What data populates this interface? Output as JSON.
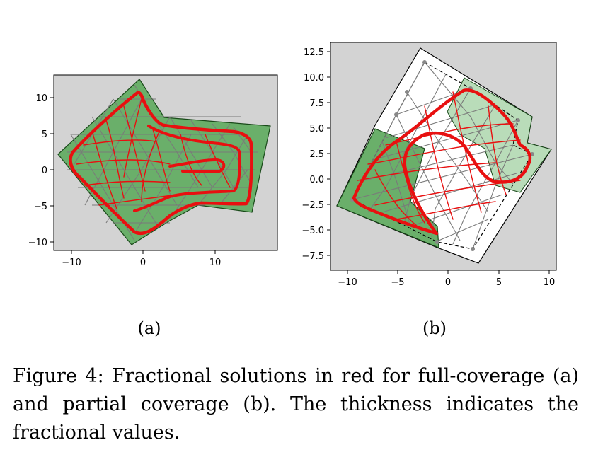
{
  "figure": {
    "subfigures": [
      {
        "label": "(a)",
        "x_ticks": [
          "−10",
          "0",
          "10"
        ],
        "y_ticks": [
          "10",
          "5",
          "0",
          "−5",
          "−10"
        ]
      },
      {
        "label": "(b)",
        "x_ticks": [
          "−10",
          "−5",
          "0",
          "5",
          "10"
        ],
        "y_ticks": [
          "12.5",
          "10.0",
          "7.5",
          "5.0",
          "2.5",
          "0.0",
          "−2.5",
          "−5.0",
          "−7.5"
        ]
      }
    ],
    "caption": {
      "number": "Figure 4:",
      "text": "Fractional solutions in red for full-coverage (a) and partial coverage (b). The thickness indicates the fractional values."
    }
  },
  "colors": {
    "axes_bg": "#d3d3d3",
    "region_green": "#6aaf6a",
    "light_green": "#b9dcb9",
    "mesh_gray": "#808080",
    "solution_red": "#e81010"
  }
}
